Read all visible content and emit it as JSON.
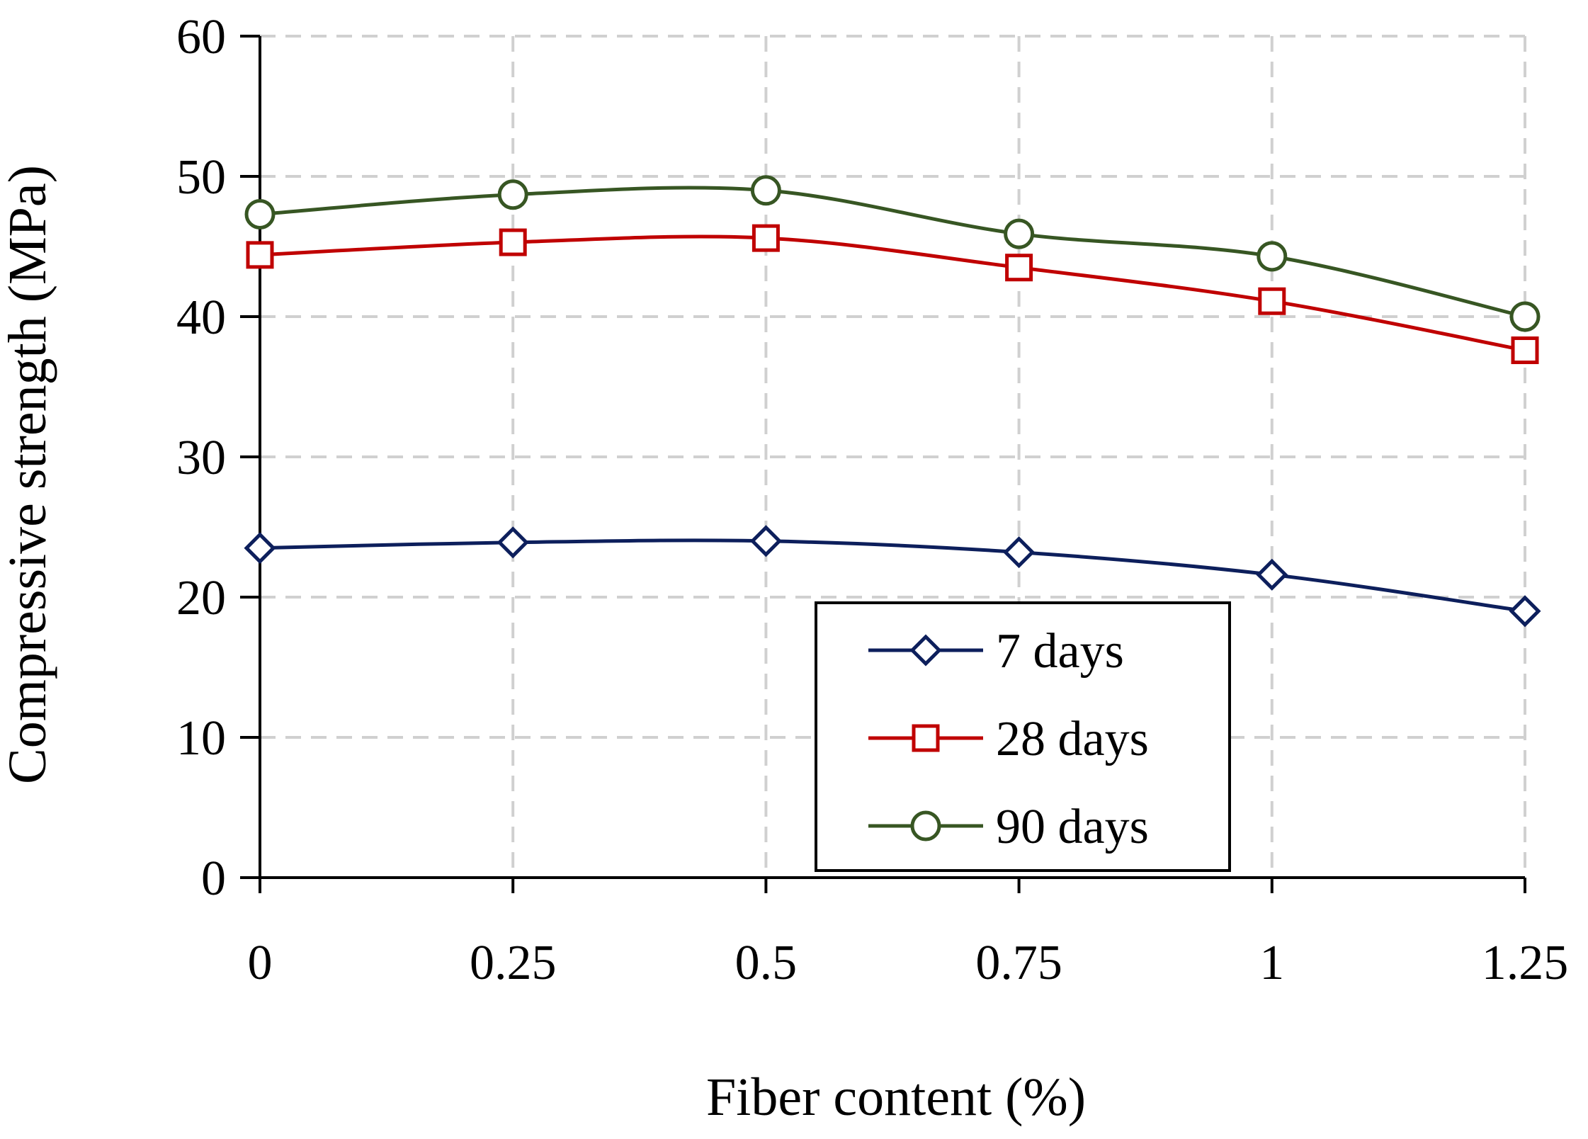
{
  "chart_data": {
    "type": "line",
    "title": "",
    "xlabel": "Fiber content (%)",
    "ylabel": "Compressive strength (MPa)",
    "x": [
      0,
      0.25,
      0.5,
      0.75,
      1,
      1.25
    ],
    "x_tick_labels": [
      "0",
      "0.25",
      "0.5",
      "0.75",
      "1",
      "1.25"
    ],
    "ylim": [
      0,
      60
    ],
    "y_ticks": [
      0,
      10,
      20,
      30,
      40,
      50,
      60
    ],
    "y_tick_labels": [
      "0",
      "10",
      "20",
      "30",
      "40",
      "50",
      "60"
    ],
    "grid": true,
    "legend_position": "bottom-right",
    "series": [
      {
        "name": "7 days",
        "marker": "diamond",
        "color": "#0d1f5c",
        "values": [
          23.5,
          23.9,
          24.0,
          23.2,
          21.6,
          19.0
        ]
      },
      {
        "name": "28 days",
        "marker": "square",
        "color": "#c00000",
        "values": [
          44.4,
          45.3,
          45.6,
          43.5,
          41.1,
          37.6
        ]
      },
      {
        "name": "90 days",
        "marker": "circle",
        "color": "#375623",
        "values": [
          47.3,
          48.7,
          49.0,
          45.9,
          44.3,
          40.0
        ]
      }
    ]
  }
}
